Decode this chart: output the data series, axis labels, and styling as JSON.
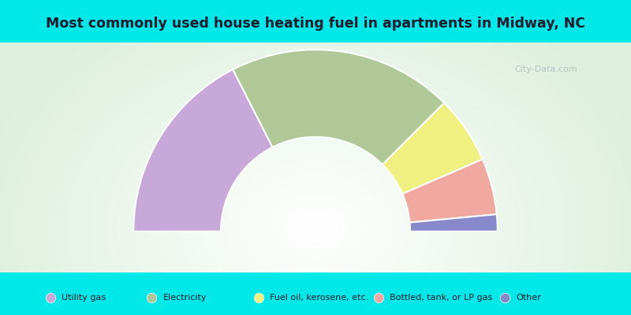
{
  "title": "Most commonly used house heating fuel in apartments in Midway, NC",
  "categories": [
    "Utility gas",
    "Electricity",
    "Fuel oil, kerosene, etc.",
    "Bottled, tank, or LP gas",
    "Other"
  ],
  "values": [
    35,
    40,
    12,
    10,
    3
  ],
  "colors": [
    "#c8a8d8",
    "#b0c898",
    "#f0f080",
    "#f0a8a0",
    "#8888cc"
  ],
  "cyan_color": "#00e8e8",
  "watermark": "City-Data.com",
  "figsize": [
    8,
    4
  ],
  "dpi": 100,
  "outer_r": 1.0,
  "inner_r": 0.52
}
